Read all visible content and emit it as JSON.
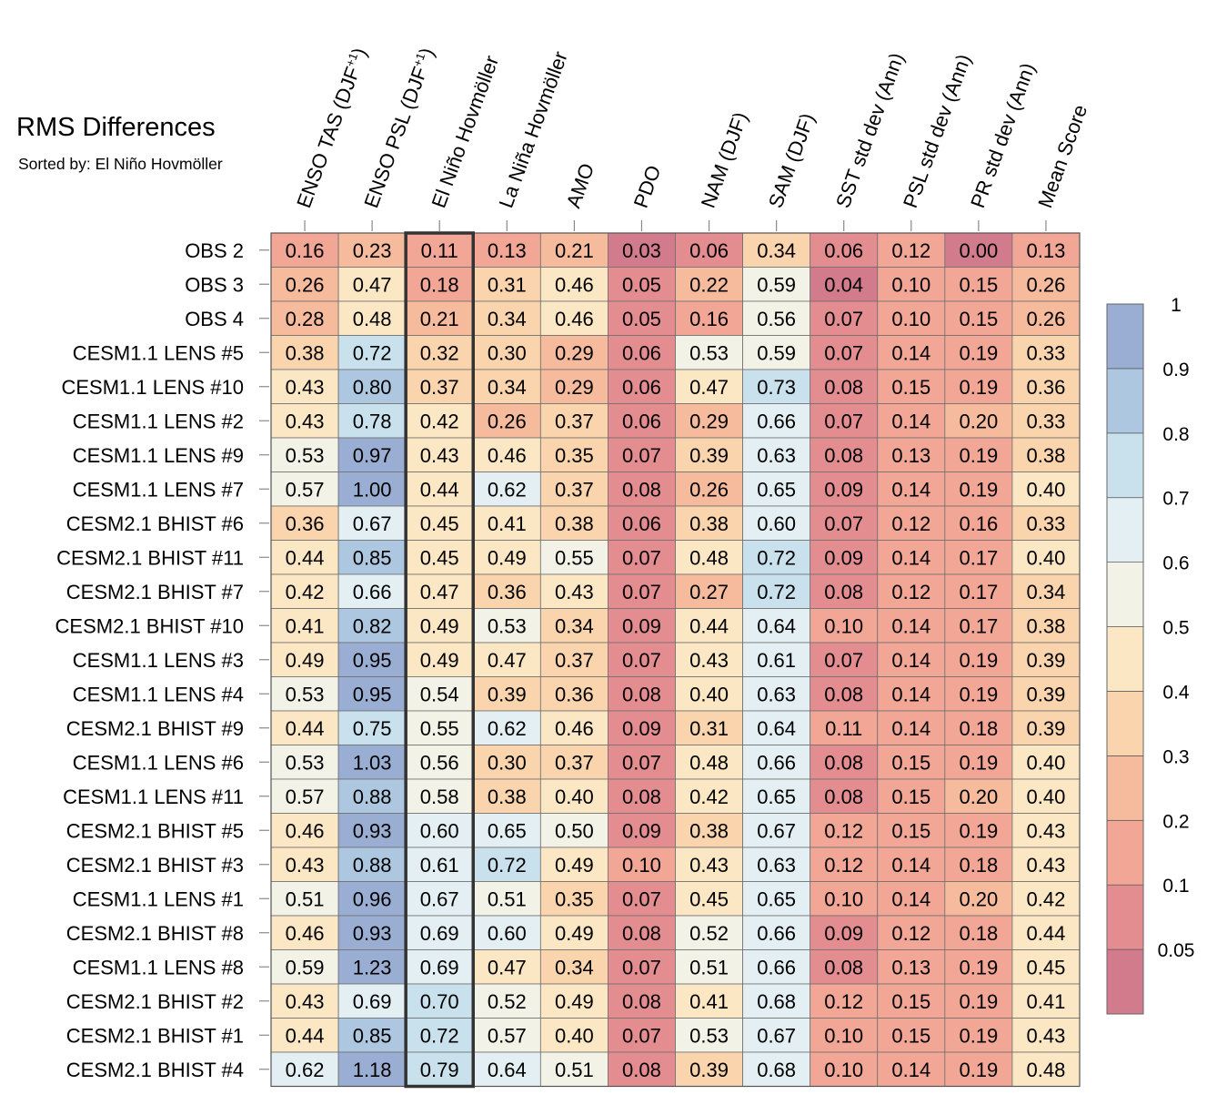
{
  "title": "RMS Differences",
  "subtitle": "Sorted by: El Niño Hovmöller",
  "chart_data": {
    "type": "heatmap",
    "title": "RMS Differences",
    "subtitle": "Sorted by: El Niño Hovmöller",
    "columns": [
      "ENSO TAS (DJF+1)",
      "ENSO PSL (DJF+1)",
      "El Niño Hovmöller",
      "La Niña Hovmöller",
      "AMO",
      "PDO",
      "NAM (DJF)",
      "SAM (DJF)",
      "SST std dev (Ann)",
      "PSL std dev (Ann)",
      "PR std dev (Ann)",
      "Mean Score"
    ],
    "rows": [
      "OBS 2",
      "OBS 3",
      "OBS 4",
      "CESM1.1 LENS #5",
      "CESM1.1 LENS #10",
      "CESM1.1 LENS #2",
      "CESM1.1 LENS #9",
      "CESM1.1 LENS #7",
      "CESM2.1 BHIST #6",
      "CESM2.1 BHIST #11",
      "CESM2.1 BHIST #7",
      "CESM2.1 BHIST #10",
      "CESM1.1 LENS #3",
      "CESM1.1 LENS #4",
      "CESM2.1 BHIST #9",
      "CESM1.1 LENS #6",
      "CESM1.1 LENS #11",
      "CESM2.1 BHIST #5",
      "CESM2.1 BHIST #3",
      "CESM1.1 LENS #1",
      "CESM2.1 BHIST #8",
      "CESM1.1 LENS #8",
      "CESM2.1 BHIST #2",
      "CESM2.1 BHIST #1",
      "CESM2.1 BHIST #4"
    ],
    "values": [
      [
        "0.16",
        "0.23",
        "0.11",
        "0.13",
        "0.21",
        "0.03",
        "0.06",
        "0.34",
        "0.06",
        "0.12",
        "0.00",
        "0.13"
      ],
      [
        "0.26",
        "0.47",
        "0.18",
        "0.31",
        "0.46",
        "0.05",
        "0.22",
        "0.59",
        "0.04",
        "0.10",
        "0.15",
        "0.26"
      ],
      [
        "0.28",
        "0.48",
        "0.21",
        "0.34",
        "0.46",
        "0.05",
        "0.16",
        "0.56",
        "0.07",
        "0.10",
        "0.15",
        "0.26"
      ],
      [
        "0.38",
        "0.72",
        "0.32",
        "0.30",
        "0.29",
        "0.06",
        "0.53",
        "0.59",
        "0.07",
        "0.14",
        "0.19",
        "0.33"
      ],
      [
        "0.43",
        "0.80",
        "0.37",
        "0.34",
        "0.29",
        "0.06",
        "0.47",
        "0.73",
        "0.08",
        "0.15",
        "0.19",
        "0.36"
      ],
      [
        "0.43",
        "0.78",
        "0.42",
        "0.26",
        "0.37",
        "0.06",
        "0.29",
        "0.66",
        "0.07",
        "0.14",
        "0.20",
        "0.33"
      ],
      [
        "0.53",
        "0.97",
        "0.43",
        "0.46",
        "0.35",
        "0.07",
        "0.39",
        "0.63",
        "0.08",
        "0.13",
        "0.19",
        "0.38"
      ],
      [
        "0.57",
        "1.00",
        "0.44",
        "0.62",
        "0.37",
        "0.08",
        "0.26",
        "0.65",
        "0.09",
        "0.14",
        "0.19",
        "0.40"
      ],
      [
        "0.36",
        "0.67",
        "0.45",
        "0.41",
        "0.38",
        "0.06",
        "0.38",
        "0.60",
        "0.07",
        "0.12",
        "0.16",
        "0.33"
      ],
      [
        "0.44",
        "0.85",
        "0.45",
        "0.49",
        "0.55",
        "0.07",
        "0.48",
        "0.72",
        "0.09",
        "0.14",
        "0.17",
        "0.40"
      ],
      [
        "0.42",
        "0.66",
        "0.47",
        "0.36",
        "0.43",
        "0.07",
        "0.27",
        "0.72",
        "0.08",
        "0.12",
        "0.17",
        "0.34"
      ],
      [
        "0.41",
        "0.82",
        "0.49",
        "0.53",
        "0.34",
        "0.09",
        "0.44",
        "0.64",
        "0.10",
        "0.14",
        "0.17",
        "0.38"
      ],
      [
        "0.49",
        "0.95",
        "0.49",
        "0.47",
        "0.37",
        "0.07",
        "0.43",
        "0.61",
        "0.07",
        "0.14",
        "0.19",
        "0.39"
      ],
      [
        "0.53",
        "0.95",
        "0.54",
        "0.39",
        "0.36",
        "0.08",
        "0.40",
        "0.63",
        "0.08",
        "0.14",
        "0.19",
        "0.39"
      ],
      [
        "0.44",
        "0.75",
        "0.55",
        "0.62",
        "0.46",
        "0.09",
        "0.31",
        "0.64",
        "0.11",
        "0.14",
        "0.18",
        "0.39"
      ],
      [
        "0.53",
        "1.03",
        "0.56",
        "0.30",
        "0.37",
        "0.07",
        "0.48",
        "0.66",
        "0.08",
        "0.15",
        "0.19",
        "0.40"
      ],
      [
        "0.57",
        "0.88",
        "0.58",
        "0.38",
        "0.40",
        "0.08",
        "0.42",
        "0.65",
        "0.08",
        "0.15",
        "0.20",
        "0.40"
      ],
      [
        "0.46",
        "0.93",
        "0.60",
        "0.65",
        "0.50",
        "0.09",
        "0.38",
        "0.67",
        "0.12",
        "0.15",
        "0.19",
        "0.43"
      ],
      [
        "0.43",
        "0.88",
        "0.61",
        "0.72",
        "0.49",
        "0.10",
        "0.43",
        "0.63",
        "0.12",
        "0.14",
        "0.18",
        "0.43"
      ],
      [
        "0.51",
        "0.96",
        "0.67",
        "0.51",
        "0.35",
        "0.07",
        "0.45",
        "0.65",
        "0.10",
        "0.14",
        "0.20",
        "0.42"
      ],
      [
        "0.46",
        "0.93",
        "0.69",
        "0.60",
        "0.49",
        "0.08",
        "0.52",
        "0.66",
        "0.09",
        "0.12",
        "0.18",
        "0.44"
      ],
      [
        "0.59",
        "1.23",
        "0.69",
        "0.47",
        "0.34",
        "0.07",
        "0.51",
        "0.66",
        "0.08",
        "0.13",
        "0.19",
        "0.45"
      ],
      [
        "0.43",
        "0.69",
        "0.70",
        "0.52",
        "0.49",
        "0.08",
        "0.41",
        "0.68",
        "0.12",
        "0.15",
        "0.19",
        "0.41"
      ],
      [
        "0.44",
        "0.85",
        "0.72",
        "0.57",
        "0.40",
        "0.07",
        "0.53",
        "0.67",
        "0.10",
        "0.15",
        "0.19",
        "0.43"
      ],
      [
        "0.62",
        "1.18",
        "0.79",
        "0.64",
        "0.51",
        "0.08",
        "0.39",
        "0.68",
        "0.10",
        "0.14",
        "0.19",
        "0.48"
      ]
    ],
    "highlighted_column": "El Niño Hovmöller",
    "colorbar": {
      "levels": [
        0.05,
        0.1,
        0.2,
        0.3,
        0.4,
        0.5,
        0.6,
        0.7,
        0.8,
        0.9,
        1
      ],
      "tick_labels": [
        "0.05",
        "0.1",
        "0.2",
        "0.3",
        "0.4",
        "0.5",
        "0.6",
        "0.7",
        "0.8",
        "0.9",
        "1"
      ],
      "colors": [
        "#d27b8d",
        "#e48d90",
        "#f1a696",
        "#f6bb9d",
        "#f9d4ad",
        "#fbe7c4",
        "#f3f2e6",
        "#e3eff2",
        "#c8e1ec",
        "#acc7df",
        "#9aaed3"
      ]
    }
  }
}
